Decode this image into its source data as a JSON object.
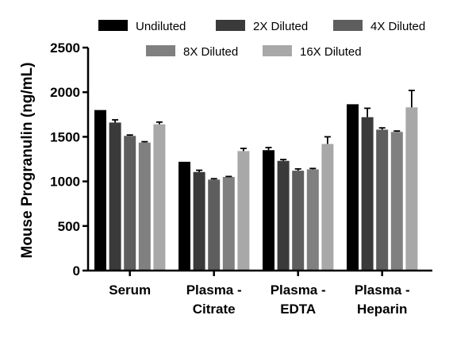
{
  "chart_data": {
    "type": "bar",
    "title": "",
    "xlabel": "",
    "ylabel": "Mouse Progranulin (ng/mL)",
    "ylim": [
      0,
      2500
    ],
    "yticks": [
      0,
      500,
      1000,
      1500,
      2000,
      2500
    ],
    "grid": false,
    "legend_position": "top",
    "categories": [
      [
        "Serum"
      ],
      [
        "Plasma -",
        "Citrate"
      ],
      [
        "Plasma -",
        "EDTA"
      ],
      [
        "Plasma -",
        "Heparin"
      ]
    ],
    "series": [
      {
        "name": "Undiluted",
        "color": "#000000",
        "values": [
          1800,
          1220,
          1350,
          1865
        ],
        "errors": [
          0,
          0,
          30,
          0
        ]
      },
      {
        "name": "2X Diluted",
        "color": "#3a3a3a",
        "values": [
          1660,
          1105,
          1230,
          1720
        ],
        "errors": [
          30,
          20,
          15,
          100
        ]
      },
      {
        "name": "4X Diluted",
        "color": "#5e5e5e",
        "values": [
          1510,
          1020,
          1120,
          1580
        ],
        "errors": [
          10,
          10,
          20,
          20
        ]
      },
      {
        "name": "8X Diluted",
        "color": "#808080",
        "values": [
          1435,
          1050,
          1135,
          1555
        ],
        "errors": [
          10,
          5,
          10,
          10
        ]
      },
      {
        "name": "16X Diluted",
        "color": "#a8a8a8",
        "values": [
          1640,
          1340,
          1420,
          1830
        ],
        "errors": [
          25,
          30,
          80,
          190
        ]
      }
    ]
  }
}
